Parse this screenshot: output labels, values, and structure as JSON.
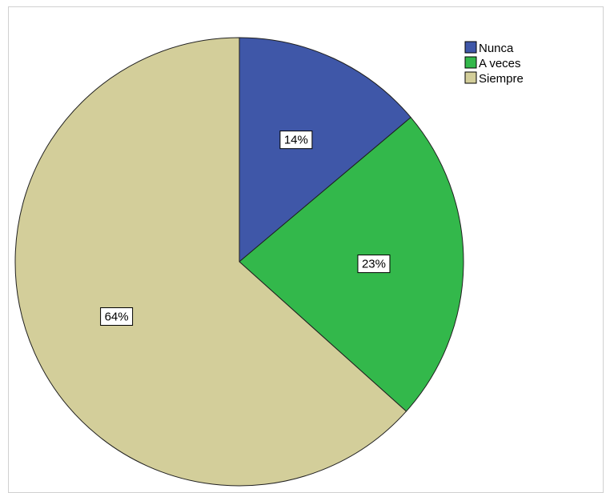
{
  "chart_data": {
    "type": "pie",
    "title": "",
    "start_angle_deg": 0,
    "direction": "clockwise",
    "legend_position": "top-right",
    "slices": [
      {
        "label": "Nunca",
        "value": 14,
        "display": "14%",
        "color": "#3f57a8"
      },
      {
        "label": "A veces",
        "value": 23,
        "display": "23%",
        "color": "#33b84b"
      },
      {
        "label": "Siempre",
        "value": 64,
        "display": "64%",
        "color": "#d3ce9a"
      }
    ]
  }
}
